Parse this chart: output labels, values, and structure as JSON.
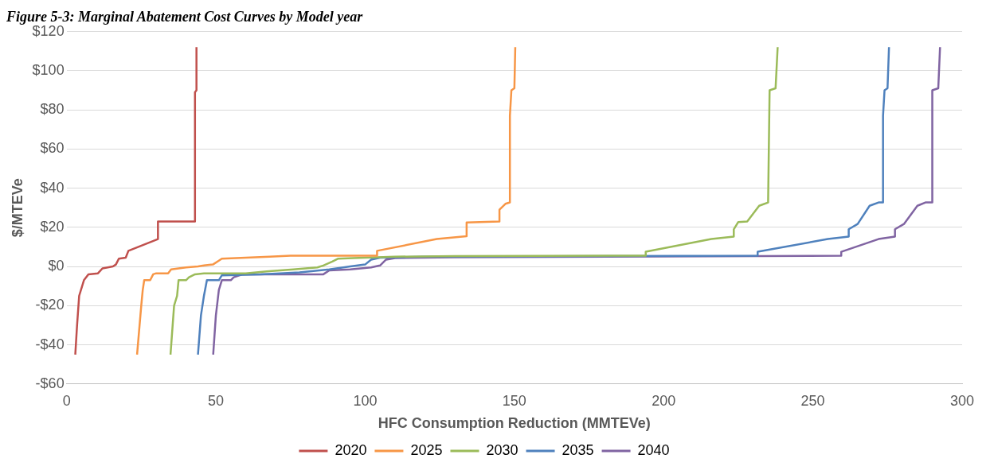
{
  "chart_data": {
    "type": "line",
    "title": "Figure 5-3: Marginal Abatement Cost Curves by Model year",
    "xlabel": "HFC Consumption Reduction (MMTEVe)",
    "ylabel": "$/MTEVe",
    "xlim": [
      0,
      300
    ],
    "xticks": [
      0,
      50,
      100,
      150,
      200,
      250,
      300
    ],
    "ylim": [
      -60,
      120
    ],
    "yticks": [
      {
        "value": 120,
        "label": "$120"
      },
      {
        "value": 100,
        "label": "$100"
      },
      {
        "value": 80,
        "label": "$80"
      },
      {
        "value": 60,
        "label": "$60"
      },
      {
        "value": 40,
        "label": "$40"
      },
      {
        "value": 20,
        "label": "$20"
      },
      {
        "value": 0,
        "label": "$0"
      },
      {
        "value": -20,
        "label": "-$20"
      },
      {
        "value": -40,
        "label": "-$40"
      },
      {
        "value": -60,
        "label": "-$60"
      }
    ],
    "grid": "y",
    "legend": "bottom",
    "marker": "none",
    "line_style": "solid",
    "series": [
      {
        "name": "2020",
        "color": "#c0504d",
        "x": [
          2.9,
          3.5,
          4.2,
          5.8,
          7.3,
          10.5,
          12,
          15.5,
          16.5,
          17.5,
          19.8,
          20.7,
          30.6,
          30.6,
          43,
          43,
          43.5,
          43.5
        ],
        "values": [
          -45,
          -30,
          -15,
          -7,
          -4,
          -3.5,
          -1,
          0,
          1,
          4,
          4.5,
          8,
          14,
          23,
          23,
          89,
          90,
          112
        ]
      },
      {
        "name": "2025",
        "color": "#f79646",
        "x": [
          23.6,
          25,
          25.5,
          26,
          28,
          29,
          30,
          34,
          35,
          40,
          44,
          46,
          49,
          51,
          52,
          60,
          68,
          75,
          104,
          104,
          124,
          134,
          134,
          145,
          145,
          147,
          148.5,
          148.5,
          149,
          150,
          150.3
        ],
        "values": [
          -45,
          -20,
          -12,
          -7,
          -7,
          -4,
          -3.5,
          -3.5,
          -1.5,
          -0.5,
          0,
          0.5,
          1,
          3,
          4,
          4.5,
          5,
          5.5,
          5.5,
          8,
          14,
          15.5,
          22.5,
          23,
          29,
          32,
          32.7,
          77,
          90,
          91,
          112
        ]
      },
      {
        "name": "2030",
        "color": "#9bbb59",
        "x": [
          34.8,
          36,
          37,
          37.5,
          40,
          41,
          43,
          46,
          60,
          67,
          76,
          84,
          86,
          89,
          91,
          96,
          110,
          130,
          194,
          194,
          216,
          223.5,
          223.5,
          225,
          228,
          232,
          235,
          235.5,
          237.5,
          238.2
        ],
        "values": [
          -45,
          -20,
          -15,
          -7,
          -7,
          -5.5,
          -4,
          -3.5,
          -3.5,
          -2.5,
          -1.5,
          -0.5,
          0.5,
          2.5,
          4,
          4.3,
          5,
          5.3,
          5.5,
          7.5,
          14,
          15.3,
          19,
          22.7,
          23,
          31,
          32.7,
          90,
          91,
          112
        ]
      },
      {
        "name": "2035",
        "color": "#4f81bd",
        "x": [
          44,
          45,
          46,
          47,
          51,
          52,
          65,
          78,
          88,
          95,
          100,
          102,
          105,
          120,
          231.5,
          231.5,
          255,
          262,
          262,
          265,
          269,
          272,
          273.5,
          273.5,
          274,
          275,
          275.5
        ],
        "values": [
          -45,
          -25,
          -15,
          -7,
          -7,
          -4.5,
          -4,
          -3,
          -1.5,
          0,
          1,
          3.5,
          4.5,
          5,
          5.5,
          7.5,
          14,
          15.3,
          19,
          21.7,
          31,
          32.7,
          32.7,
          77,
          90,
          91,
          112
        ]
      },
      {
        "name": "2040",
        "color": "#8064a2",
        "x": [
          49.1,
          50,
          51,
          52,
          55,
          56,
          59,
          86,
          88,
          95,
          102,
          105,
          107,
          110,
          130,
          259.5,
          259.5,
          272,
          277.5,
          277.5,
          280.5,
          285,
          287.7,
          290,
          290,
          292,
          292.6
        ],
        "values": [
          -45,
          -25,
          -12,
          -7,
          -7,
          -5.5,
          -4,
          -4,
          -2,
          -1.5,
          -0.5,
          0.5,
          3.5,
          4.3,
          4.7,
          5.5,
          7.5,
          14,
          15.3,
          19,
          21.7,
          31,
          32.7,
          32.7,
          90,
          91,
          112
        ]
      }
    ]
  }
}
